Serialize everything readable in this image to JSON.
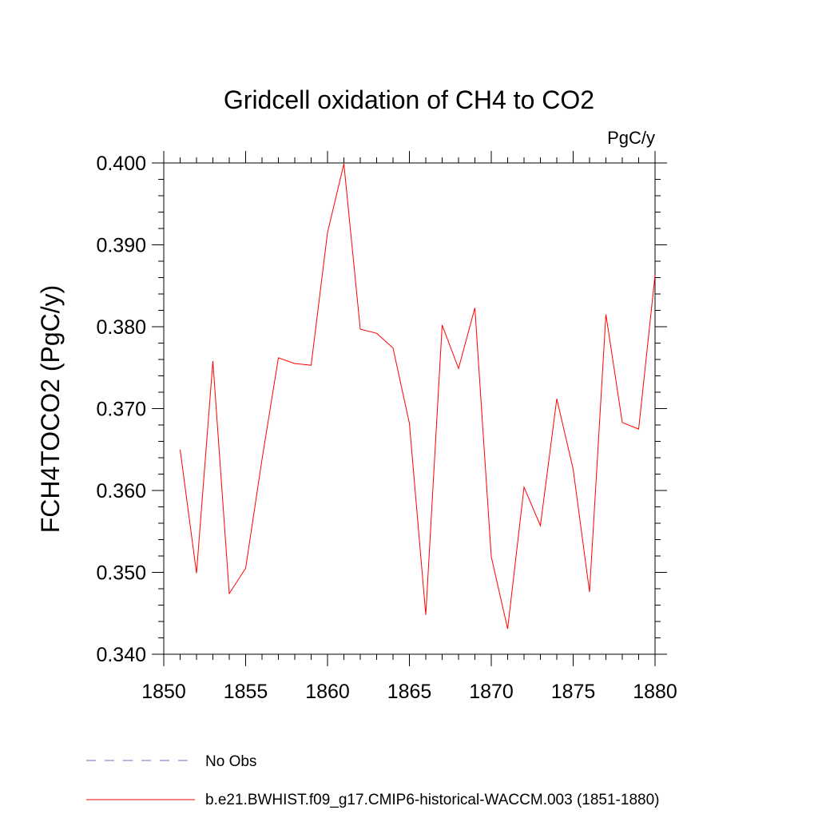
{
  "chart_data": {
    "type": "line",
    "title": "Gridcell oxidation of CH4 to CO2",
    "units_label": "PgC/y",
    "xlabel": "",
    "ylabel": "FCH4TOCO2  (PgC/y)",
    "xlim": [
      1850,
      1880
    ],
    "ylim": [
      0.34,
      0.4
    ],
    "x_ticks": [
      1850,
      1855,
      1860,
      1865,
      1870,
      1875,
      1880
    ],
    "x_tick_labels": [
      "1850",
      "1855",
      "1860",
      "1865",
      "1870",
      "1875",
      "1880"
    ],
    "y_ticks": [
      0.34,
      0.35,
      0.36,
      0.37,
      0.38,
      0.39,
      0.4
    ],
    "y_tick_labels": [
      "0.340",
      "0.350",
      "0.360",
      "0.370",
      "0.380",
      "0.390",
      "0.400"
    ],
    "grid": false,
    "series": [
      {
        "name": "b.e21.BWHIST.f09_g17.CMIP6-historical-WACCM.003 (1851-1880)",
        "color": "#ff0000",
        "style": "solid",
        "x": [
          1851,
          1852,
          1853,
          1854,
          1855,
          1856,
          1857,
          1858,
          1859,
          1860,
          1861,
          1862,
          1863,
          1864,
          1865,
          1866,
          1867,
          1868,
          1869,
          1870,
          1871,
          1872,
          1873,
          1874,
          1875,
          1876,
          1877,
          1878,
          1879,
          1880
        ],
        "values": [
          0.365,
          0.3499,
          0.3758,
          0.3474,
          0.3505,
          0.3638,
          0.3762,
          0.3755,
          0.3753,
          0.3915,
          0.3999,
          0.3797,
          0.3792,
          0.3774,
          0.3682,
          0.3448,
          0.3802,
          0.3749,
          0.3823,
          0.3519,
          0.3431,
          0.3604,
          0.3557,
          0.3712,
          0.3626,
          0.3476,
          0.3815,
          0.3683,
          0.3675,
          0.3863
        ]
      }
    ],
    "legend": [
      {
        "label": "No Obs",
        "color": "#7b68c8",
        "style": "dashed"
      },
      {
        "label": "b.e21.BWHIST.f09_g17.CMIP6-historical-WACCM.003 (1851-1880)",
        "color": "#ff0000",
        "style": "solid"
      }
    ],
    "legend_position": "bottom"
  }
}
